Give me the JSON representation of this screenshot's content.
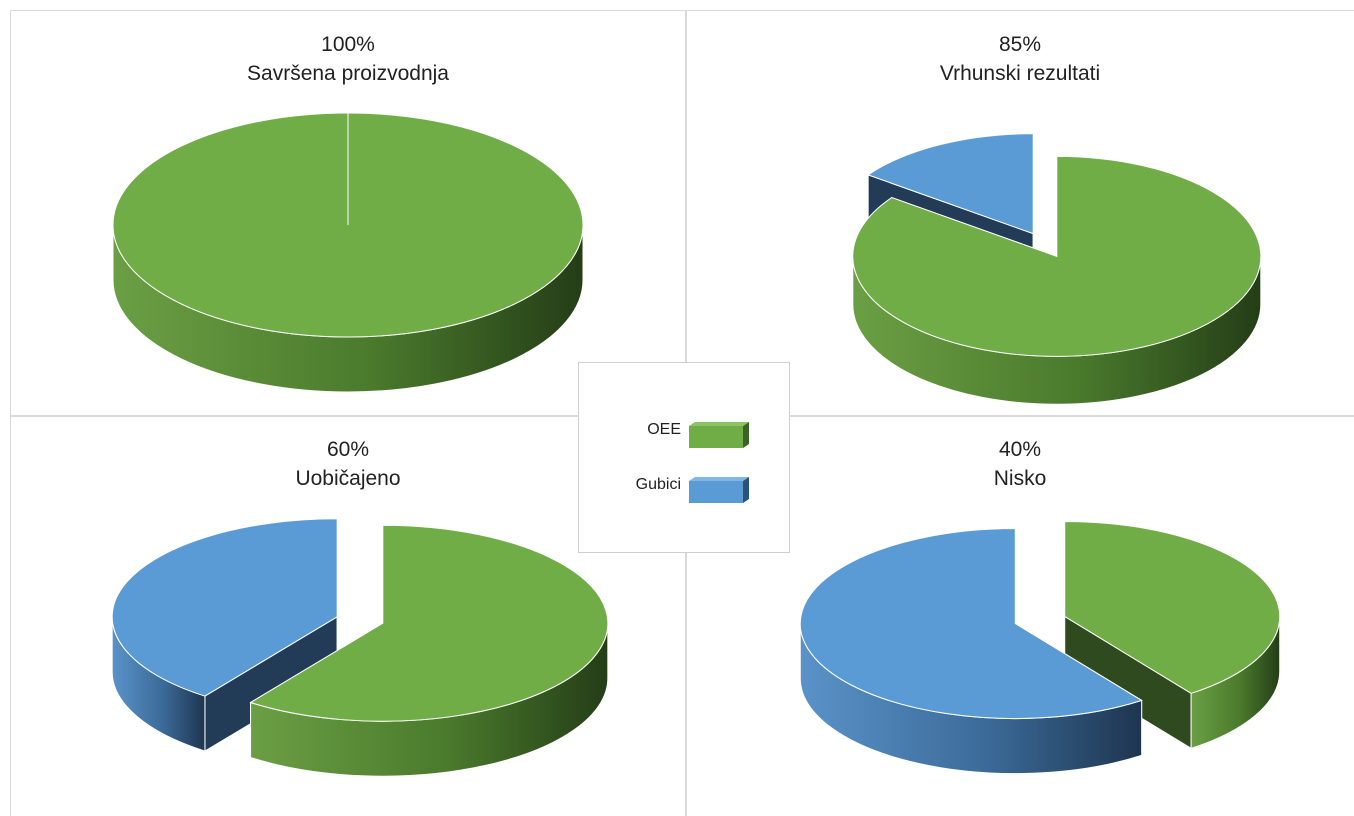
{
  "colors": {
    "oee": "#70ad47",
    "oee_side_light": "#5e9038",
    "oee_side_dark": "#2e4a1e",
    "losses": "#5b9bd5",
    "losses_side_light": "#4a82b8",
    "losses_side_dark": "#223b56",
    "grid": "#d9d9d9"
  },
  "legend": {
    "items": [
      {
        "label": "OEE",
        "color": "#70ad47"
      },
      {
        "label": "Gubici",
        "color": "#5b9bd5"
      }
    ]
  },
  "chart_data": [
    {
      "type": "pie",
      "title": "100%",
      "subtitle": "Savršena proizvodnja",
      "slices": [
        {
          "name": "OEE",
          "value": 100
        },
        {
          "name": "Gubici",
          "value": 0
        }
      ]
    },
    {
      "type": "pie",
      "title": "85%",
      "subtitle": "Vrhunski rezultati",
      "slices": [
        {
          "name": "OEE",
          "value": 85
        },
        {
          "name": "Gubici",
          "value": 15
        }
      ]
    },
    {
      "type": "pie",
      "title": "60%",
      "subtitle": "Uobičajeno",
      "slices": [
        {
          "name": "OEE",
          "value": 60
        },
        {
          "name": "Gubici",
          "value": 40
        }
      ]
    },
    {
      "type": "pie",
      "title": "40%",
      "subtitle": "Nisko",
      "slices": [
        {
          "name": "OEE",
          "value": 40
        },
        {
          "name": "Gubici",
          "value": 60
        }
      ]
    }
  ]
}
